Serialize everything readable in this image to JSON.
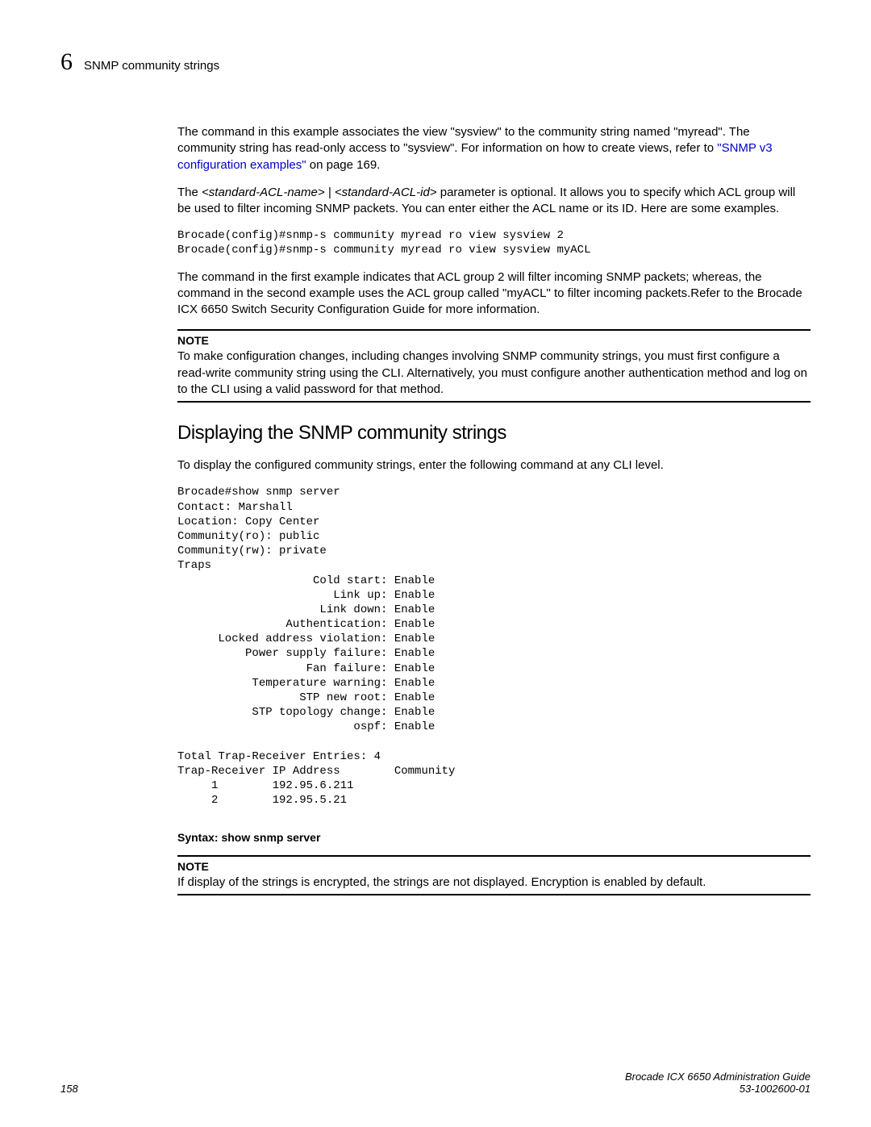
{
  "header": {
    "chapter_number": "6",
    "chapter_title": "SNMP community strings"
  },
  "p1_part1": "The command in this example associates the view \"sysview\" to the community string named \"myread\". The community string has read-only access to \"sysview\".  For information on how to create views, refer to ",
  "p1_link": "\"SNMP v3 configuration examples\"",
  "p1_part2": " on page 169.",
  "p2_part1": "The ",
  "p2_italic": "<standard-ACL-name> | <standard-ACL-id>",
  "p2_part2": " parameter  is optional.  It allows you to specify which ACL group will be used to filter incoming SNMP packets. You can enter either the ACL name or its ID.  Here are some examples.",
  "code1": "Brocade(config)#snmp-s community myread ro view sysview 2\nBrocade(config)#snmp-s community myread ro view sysview myACL",
  "p3": "The command in the first example indicates that ACL group 2 will filter incoming SNMP packets; whereas, the command in the second example uses the ACL group called \"myACL\" to filter incoming packets.Refer to the Brocade ICX 6650 Switch Security Configuration Guide for more information.",
  "note1_label": "NOTE",
  "note1_text": "To make configuration changes, including changes involving SNMP community strings, you must first configure a read-write community string using the CLI.  Alternatively, you must configure another authentication method and log on to the CLI using a valid password for that method.",
  "heading": "Displaying the SNMP community strings",
  "p4": "To display the configured community strings, enter the following command at any CLI level.",
  "code2": "Brocade#show snmp server\nContact: Marshall\nLocation: Copy Center\nCommunity(ro): public\nCommunity(rw): private\nTraps\n                    Cold start: Enable\n                       Link up: Enable\n                     Link down: Enable\n                Authentication: Enable\n      Locked address violation: Enable\n          Power supply failure: Enable\n                   Fan failure: Enable\n           Temperature warning: Enable\n                  STP new root: Enable\n           STP topology change: Enable\n                          ospf: Enable\n\nTotal Trap-Receiver Entries: 4\nTrap-Receiver IP Address        Community\n     1        192.95.6.211\n     2        192.95.5.21",
  "syntax": "Syntax:  show snmp server",
  "note2_label": "NOTE",
  "note2_text": "If display of the strings is encrypted, the strings are not displayed.  Encryption is enabled by default.",
  "footer": {
    "page_number": "158",
    "guide_title": "Brocade ICX 6650 Administration Guide",
    "doc_number": "53-1002600-01"
  }
}
